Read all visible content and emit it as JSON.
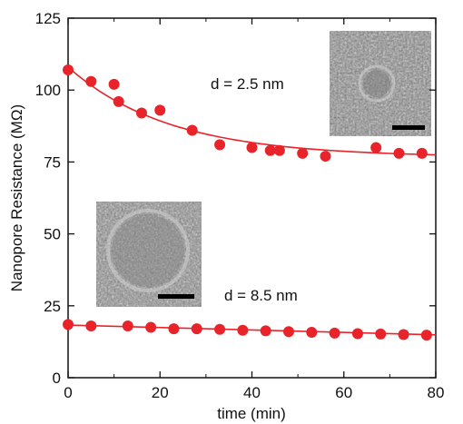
{
  "chart_data": {
    "type": "scatter",
    "xlabel": "time (min)",
    "ylabel": "Nanopore Resistance (MΩ)",
    "xlim": [
      0,
      80
    ],
    "ylim": [
      0,
      125
    ],
    "x_ticks": [
      "0",
      "20",
      "40",
      "60",
      "80"
    ],
    "y_ticks": [
      "0",
      "25",
      "50",
      "75",
      "100",
      "125"
    ],
    "x_tick_values": [
      0,
      20,
      40,
      60,
      80
    ],
    "y_tick_values": [
      0,
      25,
      50,
      75,
      100,
      125
    ],
    "grid": false,
    "marker_color": "#e8232a",
    "fit_color": "#e8232a",
    "series": [
      {
        "x": [
          0,
          5,
          10,
          11,
          16,
          20,
          27,
          33,
          40,
          44,
          46,
          51,
          56,
          67,
          72,
          77
        ],
        "y": [
          107,
          103,
          102,
          96,
          92,
          93,
          86,
          81,
          80,
          79,
          79,
          78,
          77,
          80,
          78,
          78
        ]
      },
      {
        "x": [
          0,
          5,
          13,
          18,
          23,
          28,
          33,
          38,
          43,
          48,
          53,
          58,
          63,
          68,
          73,
          78
        ],
        "y": [
          18.5,
          18,
          18,
          17.5,
          17,
          17,
          16.8,
          16.5,
          16.3,
          16,
          15.8,
          15.5,
          15.3,
          15.2,
          15,
          14.8
        ]
      }
    ],
    "fits": [
      {
        "model": "exponential decay",
        "y_start": 108,
        "y_end": 77.5
      },
      {
        "model": "linear",
        "y_start": 18.3,
        "y_end": 14.9
      }
    ],
    "annotations": [
      "d = 2.5 nm",
      "d = 8.5 nm"
    ]
  },
  "insets": [
    {
      "name": "tem-image-small-particle",
      "description_icon": "tem-micrograph-icon"
    },
    {
      "name": "tem-image-large-particle",
      "description_icon": "tem-micrograph-icon"
    }
  ]
}
